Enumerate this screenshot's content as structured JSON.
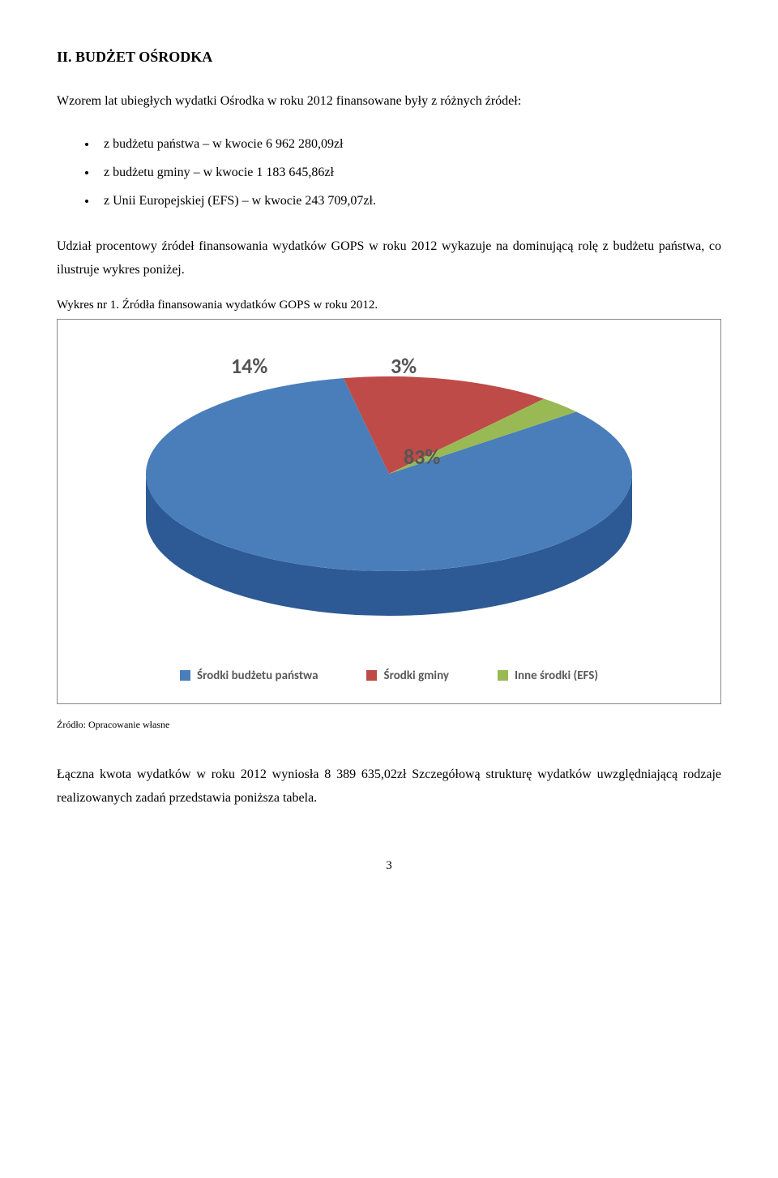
{
  "heading": "II. BUDŻET OŚRODKA",
  "intro": "Wzorem lat ubiegłych wydatki Ośrodka w roku 2012 finansowane były z różnych źródeł:",
  "bullets": [
    "z budżetu państwa – w kwocie 6 962 280,09zł",
    "z budżetu gminy – w kwocie 1 183 645,86zł",
    "z Unii Europejskiej (EFS) – w kwocie 243 709,07zł."
  ],
  "para2": "Udział procentowy źródeł finansowania wydatków GOPS w roku 2012 wykazuje na dominującą rolę z budżetu państwa, co ilustruje wykres poniżej.",
  "caption": "Wykres nr 1. Źródła finansowania wydatków GOPS w roku 2012.",
  "chart": {
    "type": "pie-3d",
    "slices": [
      {
        "label": "Środki budżetu państwa",
        "pct": 83,
        "color": "#4a7ebb",
        "side": "#2d5a94"
      },
      {
        "label": "Środki gminy",
        "pct": 14,
        "color": "#be4b48",
        "side": "#8c3432"
      },
      {
        "label": "Inne środki (EFS)",
        "pct": 3,
        "color": "#98b954",
        "side": "#6f8a3a"
      }
    ],
    "label_font": "Calibri",
    "label_fontsize": 26,
    "label_color": "#555555",
    "legend_fontsize": 15,
    "legend_color": "#595959",
    "border_color": "#888888",
    "background": "#ffffff"
  },
  "source": "Źródło: Opracowanie własne",
  "para3": "Łączna kwota wydatków w roku 2012 wyniosła 8 389 635,02zł Szczegółową strukturę wydatków uwzględniającą rodzaje realizowanych zadań przedstawia poniższa tabela.",
  "pagenum": "3"
}
